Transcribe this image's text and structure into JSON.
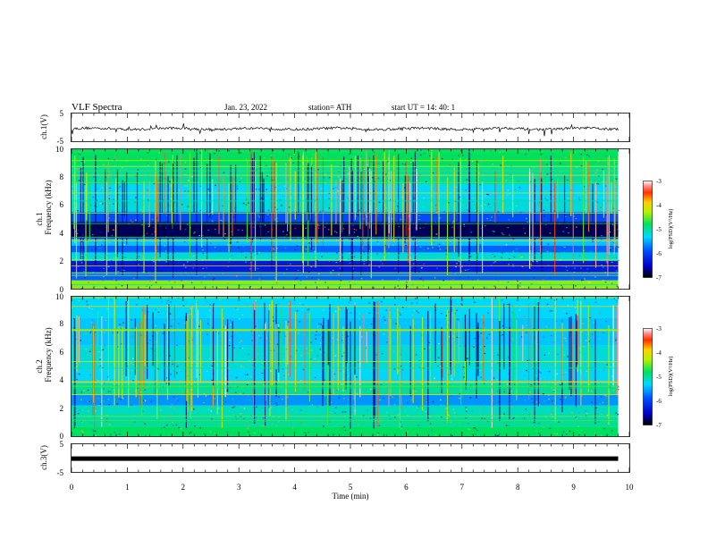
{
  "header": {
    "title": "VLF  Spectra",
    "date": "Jan. 23, 2022",
    "station": "station= ATH",
    "start": "start  UT  =   14: 40: 1"
  },
  "chart_data": [
    {
      "type": "line",
      "name": "ch1-waveform",
      "ylabel": "ch.1(V)",
      "ylim": [
        -5,
        5
      ],
      "yticks": [
        "5",
        "-5"
      ],
      "xlim": [
        0,
        10
      ],
      "trace_level": -0.5,
      "trace_end": 9.8
    },
    {
      "type": "heatmap",
      "name": "ch1-spectrogram",
      "ylabel_top": "ch.1",
      "ylabel": "Frequency  (kHz)",
      "ylim": [
        0,
        10
      ],
      "yticks": [
        "0",
        "2",
        "4",
        "6",
        "8",
        "10"
      ],
      "xlim": [
        0,
        10
      ],
      "data_end": 9.8,
      "colorbar": {
        "label": "log(PSD)(V²/Hz)",
        "ticks": [
          "-3",
          "-4",
          "-5",
          "-6",
          "-7"
        ],
        "range": [
          -7,
          -3
        ]
      },
      "bands": [
        {
          "from": 0.0,
          "to": 0.6,
          "level": -4.4
        },
        {
          "from": 0.6,
          "to": 1.2,
          "level": -5.8
        },
        {
          "from": 1.2,
          "to": 2.0,
          "level": -6.3
        },
        {
          "from": 2.0,
          "to": 2.6,
          "level": -5.2
        },
        {
          "from": 2.6,
          "to": 3.1,
          "level": -5.8
        },
        {
          "from": 3.1,
          "to": 3.6,
          "level": -5.4
        },
        {
          "from": 3.6,
          "to": 4.8,
          "level": -6.8
        },
        {
          "from": 4.8,
          "to": 5.5,
          "level": -5.9
        },
        {
          "from": 5.5,
          "to": 6.5,
          "level": -5.2
        },
        {
          "from": 6.5,
          "to": 7.5,
          "level": -5.3
        },
        {
          "from": 7.5,
          "to": 8.8,
          "level": -5.0
        },
        {
          "from": 8.8,
          "to": 10.0,
          "level": -4.8
        }
      ]
    },
    {
      "type": "heatmap",
      "name": "ch2-spectrogram",
      "ylabel_top": "ch.2",
      "ylabel": "Frequency  (kHz)",
      "ylim": [
        0,
        10
      ],
      "yticks": [
        "0",
        "2",
        "4",
        "6",
        "8",
        "10"
      ],
      "xlim": [
        0,
        10
      ],
      "data_end": 9.8,
      "colorbar": {
        "label": "log(PSD)(V²/Hz)",
        "ticks": [
          "-3",
          "-4",
          "-5",
          "-6",
          "-7"
        ],
        "range": [
          -7,
          -3
        ]
      },
      "bands": [
        {
          "from": 0.0,
          "to": 0.7,
          "level": -4.8
        },
        {
          "from": 0.7,
          "to": 1.4,
          "level": -5.0
        },
        {
          "from": 1.4,
          "to": 2.2,
          "level": -5.1
        },
        {
          "from": 2.2,
          "to": 3.0,
          "level": -5.6
        },
        {
          "from": 3.0,
          "to": 3.8,
          "level": -5.0
        },
        {
          "from": 3.8,
          "to": 5.0,
          "level": -5.3
        },
        {
          "from": 5.0,
          "to": 6.5,
          "level": -5.2
        },
        {
          "from": 6.5,
          "to": 8.5,
          "level": -5.4
        },
        {
          "from": 8.5,
          "to": 10.0,
          "level": -5.3
        }
      ]
    },
    {
      "type": "line",
      "name": "ch3-waveform",
      "ylabel": "ch.3(V)",
      "ylim": [
        -5,
        5
      ],
      "yticks": [
        "5",
        "-5"
      ],
      "xlim": [
        0,
        10
      ],
      "trace_level": -0.2,
      "trace_end": 9.8,
      "xlabel": "Time  (min)",
      "xticks": [
        "0",
        "1",
        "2",
        "3",
        "4",
        "5",
        "6",
        "7",
        "8",
        "9",
        "10"
      ]
    }
  ]
}
